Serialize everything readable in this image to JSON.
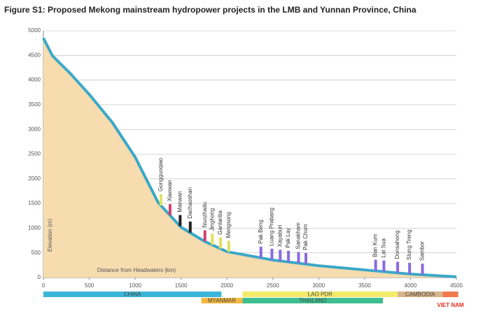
{
  "chart_data": {
    "type": "area",
    "title": "Figure S1: Proposed Mekong mainstream hydropower projects in the LMB and Yunnan Province, China",
    "y_label": "Elevation (m)",
    "x_label": "Distance from Headwaters (km)",
    "x": [
      0,
      100,
      290,
      500,
      750,
      1000,
      1250,
      1500,
      1750,
      2000,
      2500,
      3000,
      3500,
      4000,
      4500
    ],
    "series": [
      {
        "name": "Elevation",
        "color": "#3aa8c8",
        "fill": "#f6dcae",
        "values": [
          4850,
          4490,
          4140,
          3710,
          3145,
          2440,
          1520,
          1020,
          740,
          525,
          355,
          240,
          155,
          70,
          15
        ]
      }
    ],
    "xlim": [
      0,
      4500
    ],
    "xticks": [
      0,
      500,
      1000,
      1500,
      2000,
      2500,
      3000,
      3500,
      4000,
      4500
    ],
    "ylim": [
      0,
      5000
    ],
    "yticks": [
      0,
      500,
      1000,
      1500,
      2000,
      2500,
      3000,
      3500,
      4000,
      4500,
      5000
    ],
    "grid": true,
    "dams": [
      {
        "name": "Gongguoqiao",
        "x": 1280
      },
      {
        "name": "Xiaowan",
        "x": 1380
      },
      {
        "name": "Manwan",
        "x": 1490
      },
      {
        "name": "Dachaoshan",
        "x": 1600
      },
      {
        "name": "Nuozhadu",
        "x": 1760
      },
      {
        "name": "Jinghong",
        "x": 1840
      },
      {
        "name": "Ganlanba",
        "x": 1930
      },
      {
        "name": "Mengsong",
        "x": 2020
      },
      {
        "name": "Pak Beng",
        "x": 2370
      },
      {
        "name": "Luang Prabang",
        "x": 2490
      },
      {
        "name": "Xayaburi",
        "x": 2580
      },
      {
        "name": "Pak Lay",
        "x": 2670
      },
      {
        "name": "Sanakham",
        "x": 2780
      },
      {
        "name": "Pak Chom",
        "x": 2860
      },
      {
        "name": "Ban Kum",
        "x": 3620
      },
      {
        "name": "Lat Sua",
        "x": 3710
      },
      {
        "name": "Donsahong",
        "x": 3860
      },
      {
        "name": "Stung Treng",
        "x": 3990
      },
      {
        "name": "Sambor",
        "x": 4130
      }
    ],
    "countries": [
      {
        "name": "CHINA",
        "start": 0,
        "end": 1940,
        "color": "#3cb6d8"
      },
      {
        "name": "MYANMAR",
        "start": 1720,
        "end": 2170,
        "color": "#f5b942"
      },
      {
        "name": "LAO PDR",
        "start": 2170,
        "end": 3860,
        "color": "#f4ea6a"
      },
      {
        "name": "THAILAND",
        "start": 2170,
        "end": 3700,
        "color": "#3fbf8f"
      },
      {
        "name": "CAMBODIA",
        "start": 3860,
        "end": 4350,
        "color": "#d8b48a"
      },
      {
        "name": "VIET NAM",
        "start": 4350,
        "end": 4520,
        "color": "#f07a4a"
      }
    ]
  }
}
